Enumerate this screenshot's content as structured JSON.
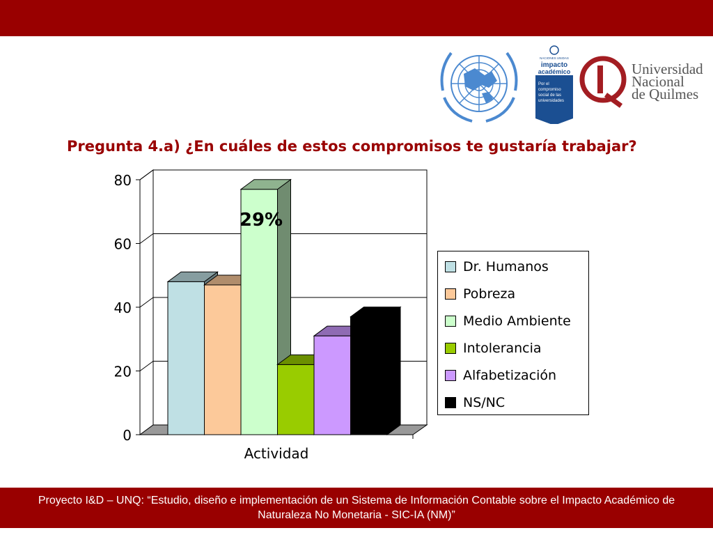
{
  "header": {
    "color": "#990000"
  },
  "logos": {
    "un_emblem": "united-nations-emblem",
    "impacto": {
      "lines": [
        "NACIONES UNIDAS",
        "impacto",
        "académico",
        "Por el",
        "compromiso",
        "social de las",
        "universidades"
      ]
    },
    "unq": {
      "lines": [
        "Universidad",
        "Nacional",
        "de Quilmes"
      ]
    }
  },
  "title": "Pregunta 4.a) ¿En cuáles de estos compromisos te gustaría trabajar?",
  "chart_data": {
    "type": "bar",
    "categories": [
      "Actividad"
    ],
    "series": [
      {
        "name": "Dr. Humanos",
        "values": [
          48
        ],
        "color": "#bfe0e4"
      },
      {
        "name": "Pobreza",
        "values": [
          47
        ],
        "color": "#fcc99a"
      },
      {
        "name": "Medio Ambiente",
        "values": [
          77
        ],
        "color": "#ccffcc"
      },
      {
        "name": "Intolerancia",
        "values": [
          22
        ],
        "color": "#99cc00"
      },
      {
        "name": "Alfabetización",
        "values": [
          31
        ],
        "color": "#cc99ff"
      },
      {
        "name": "NS/NC",
        "values": [
          37
        ],
        "color": "#000000"
      }
    ],
    "ylim": [
      0,
      80
    ],
    "yticks": [
      "0",
      "20",
      "40",
      "60",
      "80"
    ],
    "xlabel": "Actividad",
    "annotation": "29%",
    "grid": true,
    "legend_position": "right"
  },
  "footer": "Proyecto I&D – UNQ: “Estudio, diseño e implementación de un Sistema de Información Contable sobre el Impacto Académico de Naturaleza No Monetaria - SIC-IA (NM)”"
}
